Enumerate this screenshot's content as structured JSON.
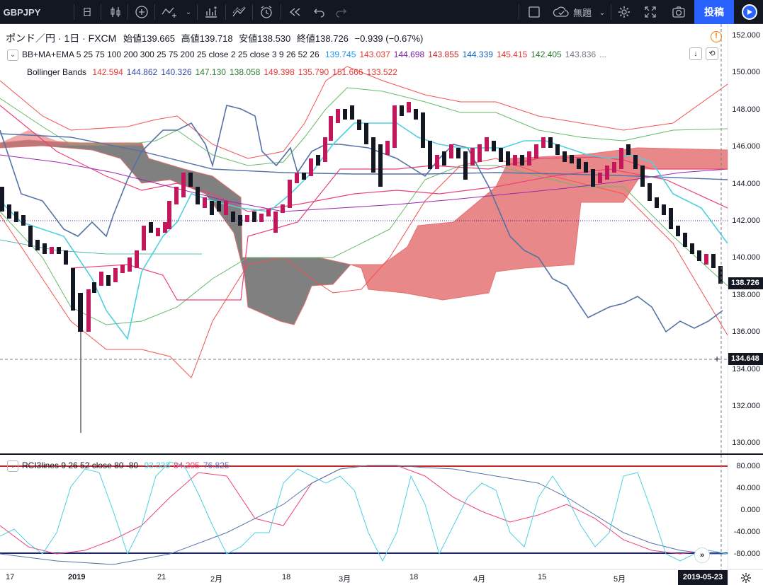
{
  "toolbar": {
    "symbol": "GBPJPY",
    "interval": "日",
    "layout_name": "無題",
    "post_label": "投稿"
  },
  "legend": {
    "title": "ポンド／円 · 1日 · FXCM",
    "open_label": "始値",
    "open": "139.665",
    "high_label": "高値",
    "high": "139.718",
    "low_label": "安値",
    "low": "138.530",
    "close_label": "終値",
    "close": "138.726",
    "change": "−0.939 (−0.67%)",
    "indicator1_name": "BB+MA+EMA 5 25 75 100 200 300 25 75 200 25 close 2 25 close 3 9 26 52 26",
    "indicator1_values": [
      {
        "v": "139.745",
        "c": "#2196f3"
      },
      {
        "v": "143.037",
        "c": "#e53935"
      },
      {
        "v": "144.698",
        "c": "#7b1fa2"
      },
      {
        "v": "143.855",
        "c": "#c62828"
      },
      {
        "v": "144.339",
        "c": "#1565c0"
      },
      {
        "v": "145.415",
        "c": "#e53935"
      },
      {
        "v": "142.405",
        "c": "#2e7d32"
      },
      {
        "v": "143.836",
        "c": "#787b86"
      },
      {
        "v": "...",
        "c": "#787b86"
      }
    ],
    "indicator2_name": "Bollinger Bands",
    "indicator2_values": [
      {
        "v": "142.594",
        "c": "#e53935"
      },
      {
        "v": "144.862",
        "c": "#3949ab"
      },
      {
        "v": "140.326",
        "c": "#3949ab"
      },
      {
        "v": "147.130",
        "c": "#2e7d32"
      },
      {
        "v": "138.058",
        "c": "#2e7d32"
      },
      {
        "v": "149.398",
        "c": "#e53935"
      },
      {
        "v": "135.790",
        "c": "#e53935"
      },
      {
        "v": "151.666",
        "c": "#e53935"
      },
      {
        "v": "133.522",
        "c": "#e53935"
      }
    ],
    "rci_name": "RCI3lines 9 26 52 close 80 -80",
    "rci_values": [
      {
        "v": "93.333",
        "c": "#4dd0e1"
      },
      {
        "v": "84.205",
        "c": "#ec407a"
      },
      {
        "v": "76.825",
        "c": "#5c6bc0"
      }
    ]
  },
  "price_axis": {
    "labels": [
      "152.000",
      "150.000",
      "148.000",
      "146.000",
      "144.000",
      "142.000",
      "140.000",
      "138.000",
      "136.000",
      "134.000",
      "132.000",
      "130.000"
    ],
    "current_price": "138.726",
    "crosshair_price": "134.648"
  },
  "rci_axis": {
    "labels": [
      "80.000",
      "40.000",
      "0.000",
      "-40.000",
      "-80.000"
    ]
  },
  "time_axis": {
    "labels": [
      "17",
      "2019",
      "21",
      "2月",
      "18",
      "3月",
      "18",
      "4月",
      "15",
      "5月"
    ],
    "crosshair_date": "2019-05-23"
  }
}
